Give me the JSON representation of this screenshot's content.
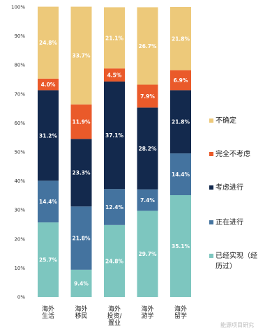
{
  "chart_data": {
    "type": "bar",
    "stacked": true,
    "percent": true,
    "ylim": [
      0,
      100
    ],
    "yticks": [
      "0%",
      "10%",
      "20%",
      "30%",
      "40%",
      "50%",
      "60%",
      "70%",
      "80%",
      "90%",
      "100%"
    ],
    "categories": [
      [
        "海外",
        "生活"
      ],
      [
        "海外",
        "移民"
      ],
      [
        "海外",
        "投资/",
        "置业"
      ],
      [
        "海外",
        "游学"
      ],
      [
        "海外",
        "留学"
      ]
    ],
    "series": [
      {
        "name": "已经实现（经历过）",
        "legend_lines": [
          "已经实现（经",
          "历过）"
        ],
        "color": "#7dc6bf",
        "values": [
          25.7,
          9.4,
          24.8,
          29.7,
          35.1
        ],
        "labels": [
          "25.7%",
          "9.4%",
          "24.8%",
          "29.7%",
          "35.1%"
        ]
      },
      {
        "name": "正在进行",
        "legend_lines": [
          "正在进行"
        ],
        "color": "#44739f",
        "values": [
          14.4,
          21.8,
          12.4,
          7.4,
          14.4
        ],
        "labels": [
          "14.4%",
          "21.8%",
          "12.4%",
          "7.4%",
          "14.4%"
        ]
      },
      {
        "name": "考虑进行",
        "legend_lines": [
          "考虑进行"
        ],
        "color": "#13294d",
        "values": [
          31.2,
          23.3,
          37.1,
          28.2,
          21.8
        ],
        "labels": [
          "31.2%",
          "23.3%",
          "37.1%",
          "28.2%",
          "21.8%"
        ]
      },
      {
        "name": "完全不考虑",
        "legend_lines": [
          "完全不考虑"
        ],
        "color": "#ea5a2a",
        "values": [
          4.0,
          11.9,
          4.5,
          7.9,
          6.9
        ],
        "labels": [
          "4.0%",
          "11.9%",
          "4.5%",
          "7.9%",
          "6.9%"
        ]
      },
      {
        "name": "不确定",
        "legend_lines": [
          "不确定"
        ],
        "color": "#edc97a",
        "values": [
          24.8,
          33.7,
          21.1,
          26.7,
          21.8
        ],
        "labels": [
          "24.8%",
          "33.7%",
          "21.1%",
          "26.7%",
          "21.8%"
        ]
      }
    ],
    "legend_order": [
      4,
      3,
      2,
      1,
      0
    ],
    "legend_position": "right",
    "grid": false
  },
  "watermark": "能源项目研究"
}
